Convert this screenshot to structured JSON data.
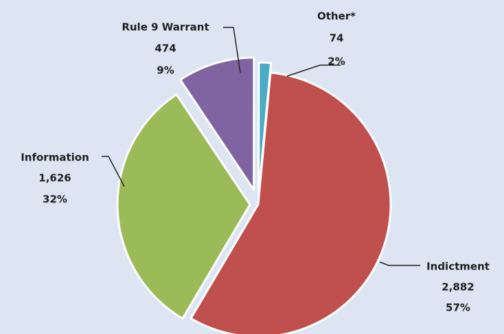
{
  "chart_data": {
    "type": "pie",
    "categories": [
      "Indictment",
      "Information",
      "Rule 9 Warrant",
      "Other*"
    ],
    "values": [
      2882,
      1626,
      474,
      74
    ],
    "value_labels": [
      "2,882",
      "1,626",
      "474",
      "74"
    ],
    "percent_labels": [
      "57%",
      "32%",
      "9%",
      "2%"
    ],
    "colors": [
      "#c0504d",
      "#9bbb59",
      "#8064a2",
      "#4bacc6"
    ],
    "exploded": true,
    "title": "",
    "legend": "none"
  }
}
